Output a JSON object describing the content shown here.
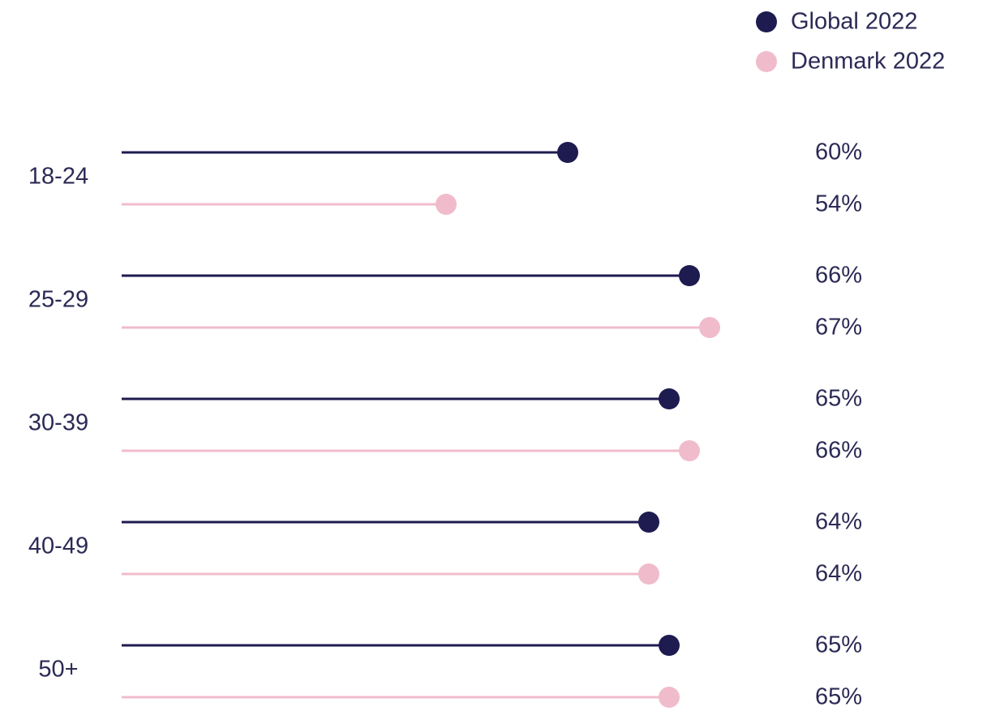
{
  "chart_data": {
    "type": "lollipop",
    "categories": [
      "18-24",
      "25-29",
      "30-39",
      "40-49",
      "50+"
    ],
    "series": [
      {
        "name": "Global 2022",
        "color": "#1e1b50",
        "values": [
          60,
          66,
          65,
          64,
          65
        ],
        "value_labels": [
          "60%",
          "66%",
          "65%",
          "64%",
          "65%"
        ]
      },
      {
        "name": "Denmark 2022",
        "color": "#f0bccb",
        "values": [
          54,
          67,
          66,
          64,
          65
        ],
        "value_labels": [
          "54%",
          "67%",
          "66%",
          "64%",
          "65%"
        ]
      }
    ],
    "xlim": [
      38,
      72
    ],
    "legend": "top-right"
  }
}
